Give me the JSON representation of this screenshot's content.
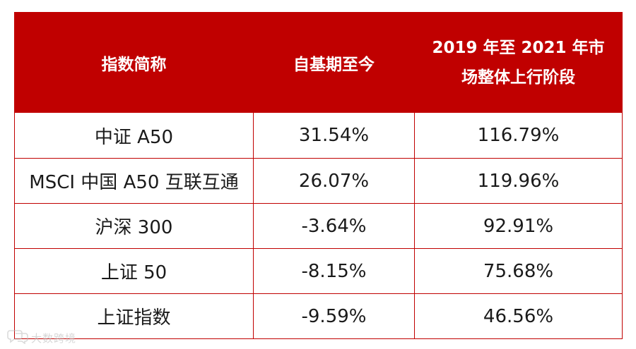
{
  "table": {
    "headers": {
      "name": "指数简称",
      "since_inception": "自基期至今",
      "rally_line1": "2019 年至 2021 年市",
      "rally_line2": "场整体上行阶段"
    },
    "rows": [
      {
        "name": "中证 A50",
        "since_inception": "31.54%",
        "rally": "116.79%"
      },
      {
        "name": "MSCI 中国 A50 互联互通",
        "since_inception": "26.07%",
        "rally": "119.96%"
      },
      {
        "name": "沪深 300",
        "since_inception": "-3.64%",
        "rally": "92.91%"
      },
      {
        "name": "上证 50",
        "since_inception": "-8.15%",
        "rally": "75.68%"
      },
      {
        "name": "上证指数",
        "since_inception": "-9.59%",
        "rally": "46.56%"
      }
    ]
  },
  "watermark": {
    "text": "大数跨境",
    "icon": "chat-bubble-logo-icon"
  },
  "colors": {
    "header_bg": "#c00000",
    "border": "#c00000",
    "header_text": "#ffffff",
    "cell_text": "#1a1a1a"
  }
}
